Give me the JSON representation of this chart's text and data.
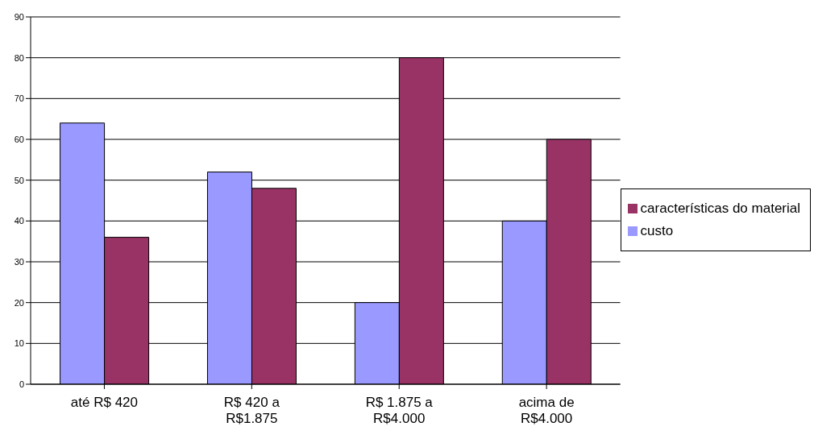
{
  "chart_data": {
    "type": "bar",
    "categories": [
      "até R$ 420",
      "R$ 420 a R$1.875",
      "R$ 1.875 a R$4.000",
      "acima de R$4.000"
    ],
    "series": [
      {
        "name": "custo",
        "color": "#9999ff",
        "values": [
          64,
          52,
          20,
          40
        ]
      },
      {
        "name": "características do material",
        "color": "#993366",
        "values": [
          36,
          48,
          80,
          60
        ]
      }
    ],
    "ylim": [
      0,
      90
    ],
    "yticks": [
      0,
      10,
      20,
      30,
      40,
      50,
      60,
      70,
      80,
      90
    ],
    "grid": "y",
    "legend": "right"
  }
}
